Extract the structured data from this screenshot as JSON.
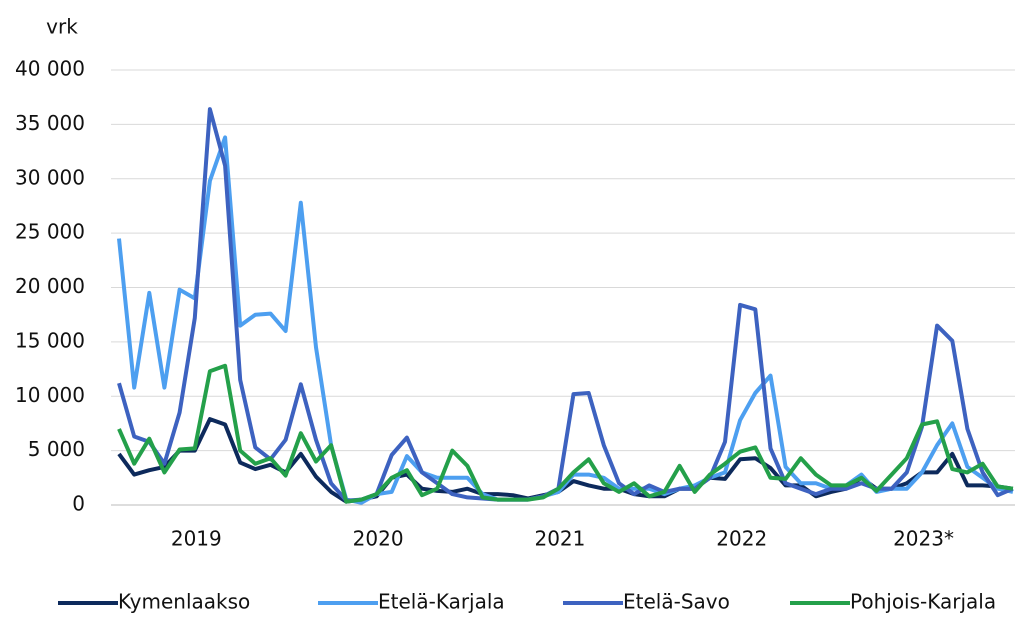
{
  "chart_data": {
    "type": "line",
    "y_label": "vrk",
    "years": [
      "2019",
      "2020",
      "2021",
      "2022",
      "2023*"
    ],
    "ylim": [
      0,
      40000
    ],
    "yticks": [
      0,
      {
        "value": 5000,
        "label": "5 000"
      },
      {
        "value": 10000,
        "label": "10 000"
      },
      {
        "value": 15000,
        "label": "15 000"
      },
      {
        "value": 20000,
        "label": "20 000"
      },
      {
        "value": 25000,
        "label": "25 000"
      },
      {
        "value": 30000,
        "label": "30 000"
      },
      {
        "value": 35000,
        "label": "35 000"
      },
      {
        "value": 40000,
        "label": "40 000"
      }
    ],
    "grid": true,
    "legend": "bottom",
    "series": [
      {
        "name": "Kymenlaakso",
        "color": "#0d2a5c",
        "values": [
          4700,
          2800,
          3200,
          3500,
          5000,
          5000,
          7900,
          7400,
          3900,
          3300,
          3700,
          3000,
          4700,
          2600,
          1200,
          300,
          500,
          800,
          2500,
          2800,
          1500,
          1300,
          1200,
          1500,
          1000,
          1000,
          900,
          600,
          900,
          1200,
          2200,
          1800,
          1500,
          1500,
          1000,
          800,
          800,
          1500,
          1500,
          2500,
          2400,
          4200,
          4300,
          3400,
          1800,
          1800,
          800,
          1200,
          1500,
          2500,
          1500,
          1500,
          2000,
          3000,
          3000,
          4700,
          1800,
          1800,
          1700,
          1500
        ]
      },
      {
        "name": "Etelä-Karjala",
        "color": "#4d9ff0",
        "values": [
          24500,
          10800,
          19500,
          10800,
          19800,
          19000,
          29800,
          33800,
          16500,
          17500,
          17600,
          16000,
          27800,
          14500,
          5500,
          500,
          200,
          1000,
          1200,
          4500,
          3000,
          2500,
          2500,
          2500,
          1000,
          500,
          500,
          500,
          800,
          1200,
          2800,
          2800,
          2500,
          1500,
          1500,
          1500,
          1000,
          1500,
          1800,
          2500,
          3000,
          7800,
          10300,
          11900,
          3500,
          2000,
          2000,
          1500,
          1800,
          2800,
          1200,
          1500,
          1500,
          3000,
          5500,
          7500,
          3500,
          2500,
          1500,
          1200
        ]
      },
      {
        "name": "Etelä-Savo",
        "color": "#3d62c0",
        "values": [
          11200,
          6300,
          5800,
          3800,
          8500,
          17200,
          36400,
          31200,
          11500,
          5300,
          4200,
          6000,
          11100,
          6000,
          2000,
          400,
          500,
          1000,
          4600,
          6200,
          3000,
          2000,
          1000,
          700,
          600,
          500,
          500,
          500,
          800,
          1500,
          10200,
          10300,
          5500,
          2000,
          1000,
          1800,
          1200,
          1500,
          1500,
          2500,
          5800,
          18400,
          18000,
          5200,
          2000,
          1500,
          1000,
          1500,
          1500,
          2000,
          1500,
          1500,
          3000,
          7200,
          16500,
          15100,
          7000,
          3000,
          900,
          1500
        ]
      },
      {
        "name": "Pohjois-Karjala",
        "color": "#24a04a",
        "values": [
          7000,
          3800,
          6100,
          3000,
          5100,
          5200,
          12300,
          12800,
          5000,
          3800,
          4300,
          2700,
          6600,
          4000,
          5500,
          300,
          500,
          1000,
          2500,
          3200,
          900,
          1500,
          5000,
          3600,
          700,
          500,
          500,
          500,
          700,
          1500,
          3000,
          4200,
          2000,
          1200,
          2000,
          800,
          1200,
          3600,
          1200,
          2800,
          3800,
          4900,
          5300,
          2500,
          2400,
          4300,
          2800,
          1800,
          1800,
          2500,
          1300,
          2800,
          4300,
          7400,
          7700,
          3300,
          3000,
          3800,
          1700,
          1500
        ]
      }
    ]
  }
}
